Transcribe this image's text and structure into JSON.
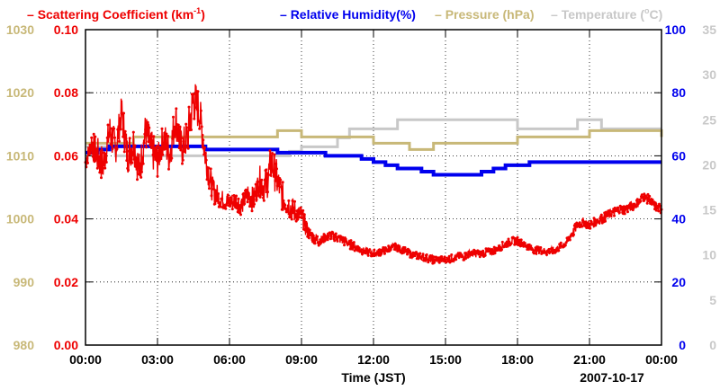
{
  "chart_data": {
    "type": "line",
    "date_label": "2007-10-17",
    "xlabel": "Time (JST)",
    "xlim": [
      0,
      24
    ],
    "x_ticks": [
      {
        "value": 0,
        "label": "00:00"
      },
      {
        "value": 3,
        "label": "03:00"
      },
      {
        "value": 6,
        "label": "06:00"
      },
      {
        "value": 9,
        "label": "09:00"
      },
      {
        "value": 12,
        "label": "12:00"
      },
      {
        "value": 15,
        "label": "15:00"
      },
      {
        "value": 18,
        "label": "18:00"
      },
      {
        "value": 21,
        "label": "21:00"
      },
      {
        "value": 24,
        "label": "00:00"
      }
    ],
    "grid": true,
    "legend_position": "top",
    "axes": {
      "pressure": {
        "ylim": [
          980,
          1030
        ],
        "ticks": [
          "980",
          "990",
          "1000",
          "1010",
          "1020",
          "1030"
        ],
        "color": "#c8b878",
        "side": "left-outer"
      },
      "scattering": {
        "ylim": [
          0,
          0.1
        ],
        "ticks": [
          "0.00",
          "0.02",
          "0.04",
          "0.06",
          "0.08",
          "0.10"
        ],
        "color": "#ee0000",
        "side": "left-inner"
      },
      "humidity": {
        "ylim": [
          0,
          100
        ],
        "ticks": [
          "0",
          "20",
          "40",
          "60",
          "80",
          "100"
        ],
        "color": "#0000ee",
        "side": "right-inner"
      },
      "temperature": {
        "ylim": [
          0,
          35
        ],
        "ticks": [
          "0",
          "5",
          "10",
          "15",
          "20",
          "25",
          "30",
          "35"
        ],
        "color": "#c8c8c8",
        "side": "right-outer"
      }
    },
    "series": [
      {
        "name": "Scattering Coefficient",
        "legend_main": "Scattering Coefficient (km",
        "legend_sup": "-1",
        "legend_tail": ")",
        "color": "#ee0000",
        "axis": "scattering",
        "x": [
          0,
          0.25,
          0.5,
          0.75,
          1,
          1.25,
          1.5,
          1.75,
          2,
          2.25,
          2.5,
          2.75,
          3,
          3.25,
          3.5,
          3.75,
          4,
          4.25,
          4.5,
          4.75,
          5,
          5.25,
          5.5,
          5.75,
          6,
          6.25,
          6.5,
          6.75,
          7,
          7.25,
          7.5,
          7.75,
          8,
          8.25,
          8.5,
          8.75,
          9,
          9.25,
          9.5,
          9.75,
          10,
          10.25,
          10.5,
          10.75,
          11,
          11.25,
          11.5,
          11.75,
          12,
          12.25,
          12.5,
          12.75,
          13,
          13.25,
          13.5,
          13.75,
          14,
          14.25,
          14.5,
          14.75,
          15,
          15.25,
          15.5,
          15.75,
          16,
          16.25,
          16.5,
          16.75,
          17,
          17.25,
          17.5,
          17.75,
          18,
          18.25,
          18.5,
          18.75,
          19,
          19.25,
          19.5,
          19.75,
          20,
          20.25,
          20.5,
          20.75,
          21,
          21.25,
          21.5,
          21.75,
          22,
          22.25,
          22.5,
          22.75,
          23,
          23.25,
          23.5,
          23.75,
          24
        ],
        "values": [
          0.058,
          0.064,
          0.06,
          0.057,
          0.068,
          0.062,
          0.074,
          0.06,
          0.064,
          0.055,
          0.068,
          0.062,
          0.058,
          0.066,
          0.06,
          0.072,
          0.062,
          0.066,
          0.078,
          0.074,
          0.06,
          0.05,
          0.047,
          0.046,
          0.045,
          0.046,
          0.044,
          0.048,
          0.046,
          0.052,
          0.05,
          0.058,
          0.052,
          0.046,
          0.044,
          0.042,
          0.041,
          0.036,
          0.034,
          0.033,
          0.034,
          0.035,
          0.034,
          0.033,
          0.032,
          0.031,
          0.03,
          0.0295,
          0.029,
          0.0295,
          0.03,
          0.031,
          0.031,
          0.03,
          0.029,
          0.0285,
          0.028,
          0.0275,
          0.027,
          0.027,
          0.027,
          0.0275,
          0.028,
          0.028,
          0.029,
          0.029,
          0.029,
          0.0295,
          0.03,
          0.031,
          0.032,
          0.033,
          0.033,
          0.032,
          0.031,
          0.03,
          0.03,
          0.0295,
          0.03,
          0.031,
          0.032,
          0.035,
          0.038,
          0.039,
          0.038,
          0.039,
          0.04,
          0.041,
          0.042,
          0.043,
          0.043,
          0.044,
          0.045,
          0.047,
          0.046,
          0.044,
          0.043
        ],
        "spread": [
          0.003,
          0.005,
          0.006,
          0.005,
          0.006,
          0.005,
          0.006,
          0.006,
          0.006,
          0.006,
          0.006,
          0.006,
          0.005,
          0.006,
          0.006,
          0.006,
          0.006,
          0.007,
          0.007,
          0.006,
          0.005,
          0.004,
          0.003,
          0.003,
          0.003,
          0.003,
          0.003,
          0.004,
          0.004,
          0.005,
          0.006,
          0.006,
          0.005,
          0.004,
          0.004,
          0.003,
          0.003,
          0.002,
          0.002,
          0.0015,
          0.0015,
          0.0015,
          0.0015,
          0.0015,
          0.0015,
          0.0012,
          0.0012,
          0.0012,
          0.0012,
          0.0012,
          0.0012,
          0.0012,
          0.0012,
          0.0012,
          0.0012,
          0.0012,
          0.0012,
          0.0012,
          0.0012,
          0.0012,
          0.0012,
          0.0012,
          0.0012,
          0.0012,
          0.0012,
          0.0012,
          0.0012,
          0.0012,
          0.0012,
          0.0012,
          0.0012,
          0.0012,
          0.0012,
          0.0012,
          0.0012,
          0.0012,
          0.0012,
          0.0012,
          0.0012,
          0.0012,
          0.0012,
          0.0015,
          0.0015,
          0.0015,
          0.0015,
          0.0015,
          0.0015,
          0.0015,
          0.0015,
          0.0015,
          0.0015,
          0.0015,
          0.0015,
          0.0015,
          0.0015,
          0.0015,
          0.0015
        ]
      },
      {
        "name": "Relative Humidity",
        "legend_main": "Relative Humidity(%)",
        "color": "#0000ee",
        "axis": "humidity",
        "step": true,
        "x": [
          0,
          0.5,
          1,
          2,
          3,
          4,
          5,
          6,
          7,
          8,
          9,
          10,
          11,
          11.5,
          12,
          12.5,
          13,
          13.5,
          14,
          14.5,
          15,
          15.5,
          16,
          16.5,
          17,
          17.5,
          18,
          18.5,
          19,
          19.5,
          20,
          21,
          21.5,
          22,
          23,
          24
        ],
        "values": [
          61,
          62,
          63,
          63,
          63,
          63,
          62,
          62,
          62,
          61,
          61,
          60,
          60,
          59,
          58,
          57,
          56,
          56,
          55,
          54,
          54,
          54,
          54,
          55,
          56,
          57,
          57,
          58,
          58,
          58,
          58,
          58,
          58,
          58,
          58,
          58
        ]
      },
      {
        "name": "Pressure",
        "legend_main": "Pressure (hPa)",
        "color": "#c8b878",
        "axis": "pressure",
        "step": true,
        "x": [
          0,
          1,
          2,
          3,
          4,
          5,
          6,
          7,
          8,
          9,
          10,
          11,
          12,
          13,
          13.5,
          14,
          14.5,
          15,
          16,
          17,
          18,
          19,
          20,
          21,
          22,
          23,
          23.5,
          24
        ],
        "values": [
          1012,
          1012,
          1013,
          1013,
          1013,
          1013,
          1013,
          1013,
          1014,
          1013,
          1013,
          1013,
          1012,
          1012,
          1011,
          1011,
          1012,
          1012,
          1012,
          1012,
          1013,
          1013,
          1013,
          1014,
          1014,
          1014,
          1014,
          1013
        ]
      },
      {
        "name": "Temperature",
        "legend_main": "Temperature (",
        "legend_unit": "C)",
        "color": "#c8c8c8",
        "axis": "temperature",
        "step": true,
        "x": [
          0,
          1.25,
          2,
          3,
          4,
          5,
          6,
          7,
          8,
          8.5,
          9,
          10,
          10.5,
          11,
          12,
          13,
          14,
          15,
          16,
          17,
          18,
          19,
          20,
          20.5,
          21,
          21.5,
          22,
          23,
          24
        ],
        "values": [
          22,
          21,
          21,
          21,
          21,
          21,
          21,
          21,
          21,
          21.5,
          22,
          22,
          23,
          24,
          24,
          25,
          25,
          25,
          25,
          25,
          24,
          24,
          24,
          25,
          25,
          24,
          24,
          24,
          24
        ]
      }
    ]
  }
}
